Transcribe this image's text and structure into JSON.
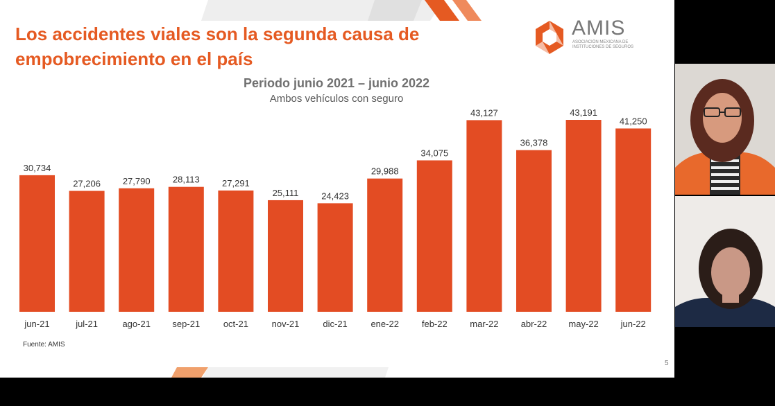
{
  "slide": {
    "title": "Los accidentes viales son la segunda causa de empobrecimiento en el país",
    "logo_name": "AMIS",
    "logo_sub": "Asociación Mexicana de Instituciones de Seguros",
    "source": "Fuente: AMIS",
    "page_number": "5"
  },
  "chart_data": {
    "type": "bar",
    "title": "Periodo junio 2021 – junio 2022",
    "subtitle": "Ambos vehículos con seguro",
    "categories": [
      "jun-21",
      "jul-21",
      "ago-21",
      "sep-21",
      "oct-21",
      "nov-21",
      "dic-21",
      "ene-22",
      "feb-22",
      "mar-22",
      "abr-22",
      "may-22",
      "jun-22"
    ],
    "values": [
      30734,
      27206,
      27790,
      28113,
      27291,
      25111,
      24423,
      29988,
      34075,
      43127,
      36378,
      43191,
      41250
    ],
    "value_labels": [
      "30,734",
      "27,206",
      "27,790",
      "28,113",
      "27,291",
      "25,111",
      "24,423",
      "29,988",
      "34,075",
      "43,127",
      "36,378",
      "43,191",
      "41,250"
    ],
    "ylim": [
      0,
      45000
    ],
    "grid": false,
    "legend": "none",
    "bar_color": "#e34c23"
  },
  "colors": {
    "accent": "#e55a22",
    "bar": "#e34c23"
  }
}
